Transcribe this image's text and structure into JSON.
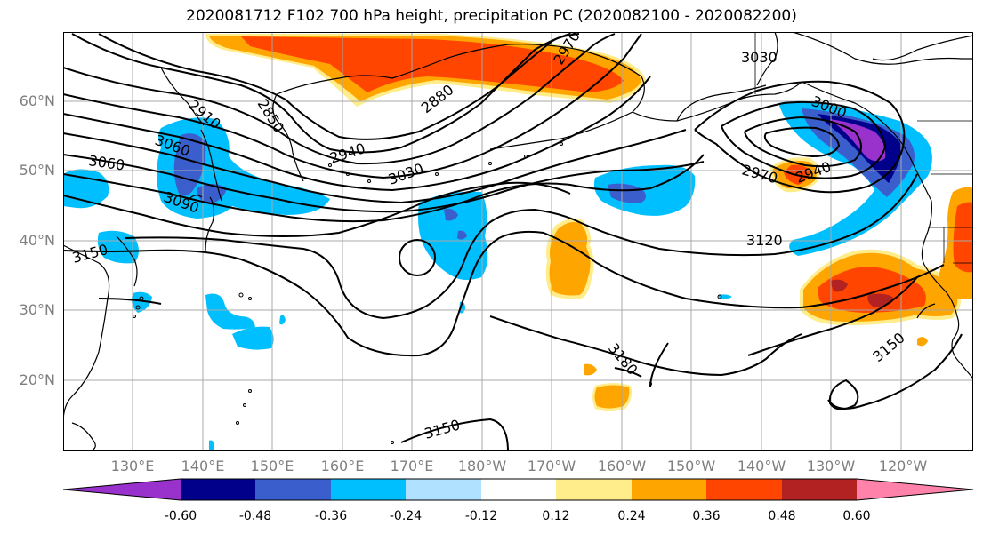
{
  "title": "2020081712 F102 700 hPa height, precipitation PC (2020082100 - 2020082200)",
  "lat_labels": [
    "60°N",
    "50°N",
    "40°N",
    "30°N",
    "20°N"
  ],
  "lon_labels": [
    "130°E",
    "140°E",
    "150°E",
    "160°E",
    "170°E",
    "180°W",
    "170°W",
    "160°W",
    "150°W",
    "140°W",
    "130°W",
    "120°W"
  ],
  "contour_labels": [
    "2910",
    "2850",
    "2880",
    "2970",
    "3030",
    "3000",
    "3060",
    "3060",
    "2940",
    "3030",
    "2970",
    "2940",
    "3090",
    "3120",
    "3150",
    "3180",
    "3150",
    "3150"
  ],
  "colorbar": {
    "colors": [
      "#9932cc",
      "#00008b",
      "#3a5fcd",
      "#00bfff",
      "#b0e2ff",
      "#ffffff",
      "#ffec8b",
      "#ffa500",
      "#ff4500",
      "#b22222",
      "#ff82ab"
    ],
    "tick_labels": [
      "-0.60",
      "-0.48",
      "-0.36",
      "-0.24",
      "-0.12",
      "0.12",
      "0.24",
      "0.36",
      "0.48",
      "0.60"
    ]
  }
}
